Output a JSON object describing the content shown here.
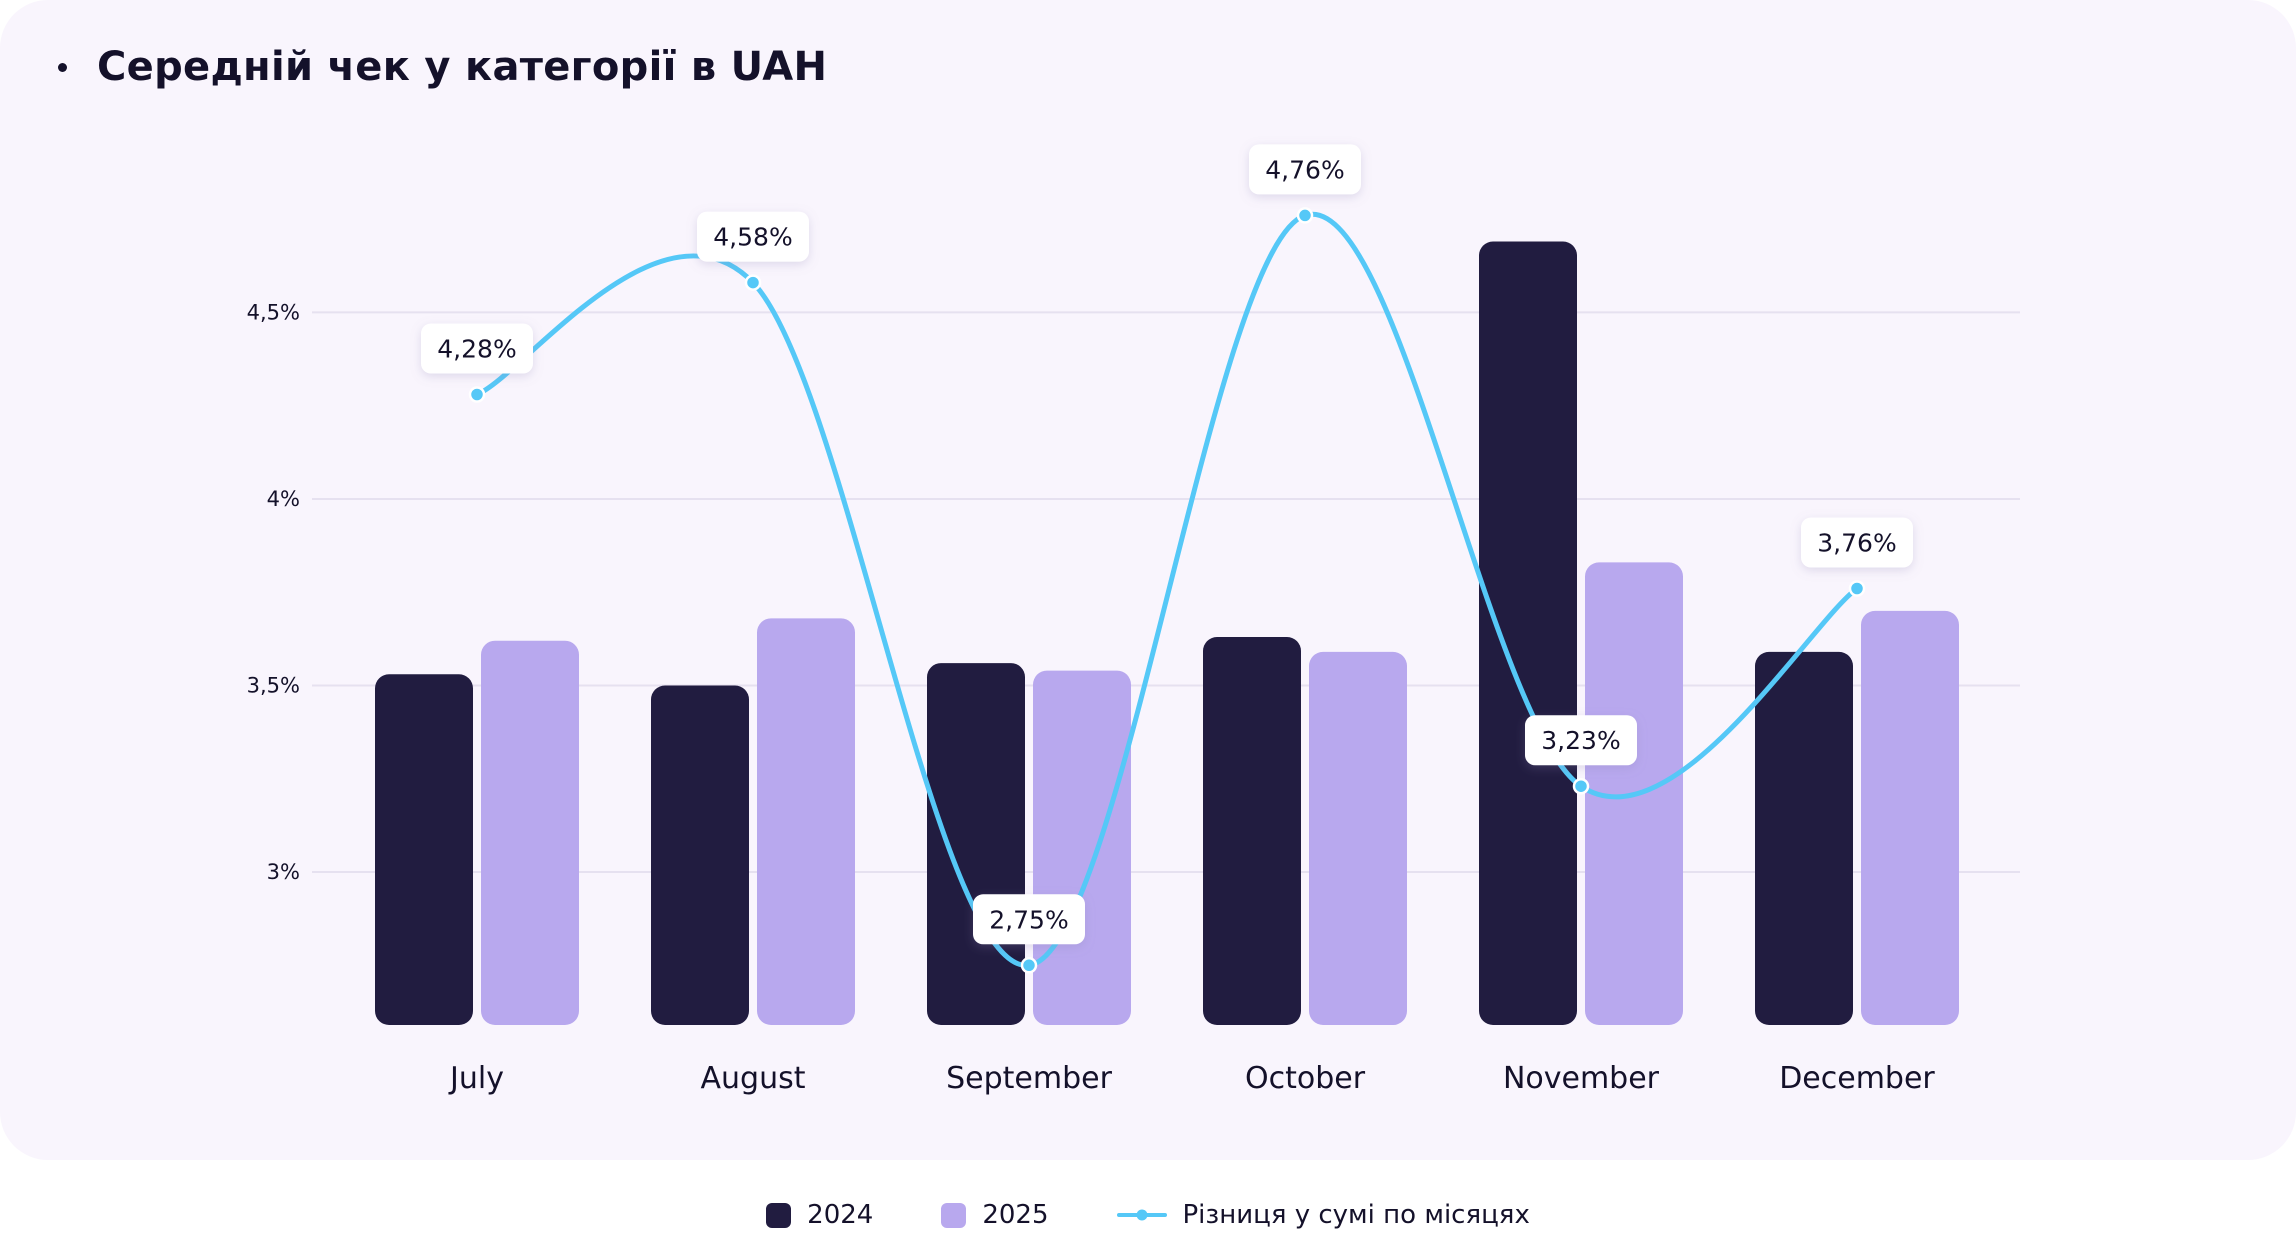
{
  "title": "Середній чек у категорії в UAH",
  "colors": {
    "series_2024": "#211c40",
    "series_2025": "#b8a8ee",
    "line": "#55c8f7",
    "grid": "#e6e1f0",
    "text": "#14112a"
  },
  "chart_data": {
    "type": "bar",
    "title": "Середній чек у категорії в UAH",
    "categories": [
      "July",
      "August",
      "September",
      "October",
      "November",
      "December"
    ],
    "series": [
      {
        "name": "2024",
        "values": [
          3.53,
          3.5,
          3.56,
          3.63,
          4.69,
          3.59
        ]
      },
      {
        "name": "2025",
        "values": [
          3.62,
          3.68,
          3.54,
          3.59,
          3.83,
          3.7
        ]
      }
    ],
    "line_series": {
      "name": "Різниця у сумі по місяцях",
      "values": [
        4.28,
        4.58,
        2.75,
        4.76,
        3.23,
        3.76
      ],
      "labels": [
        "4,28%",
        "4,58%",
        "2,75%",
        "4,76%",
        "3,23%",
        "3,76%"
      ]
    },
    "y_ticks": [
      {
        "value": 3.0,
        "label": "3%"
      },
      {
        "value": 3.5,
        "label": "3,5%"
      },
      {
        "value": 4.0,
        "label": "4%"
      },
      {
        "value": 4.5,
        "label": "4,5%"
      }
    ],
    "ylim": [
      2.59,
      4.93
    ],
    "grid": true,
    "legend_position": "bottom-center"
  },
  "legend": {
    "items": [
      {
        "label": "2024",
        "kind": "square"
      },
      {
        "label": "2025",
        "kind": "square"
      },
      {
        "label": "Різниця у сумі по місяцях",
        "kind": "line"
      }
    ]
  }
}
